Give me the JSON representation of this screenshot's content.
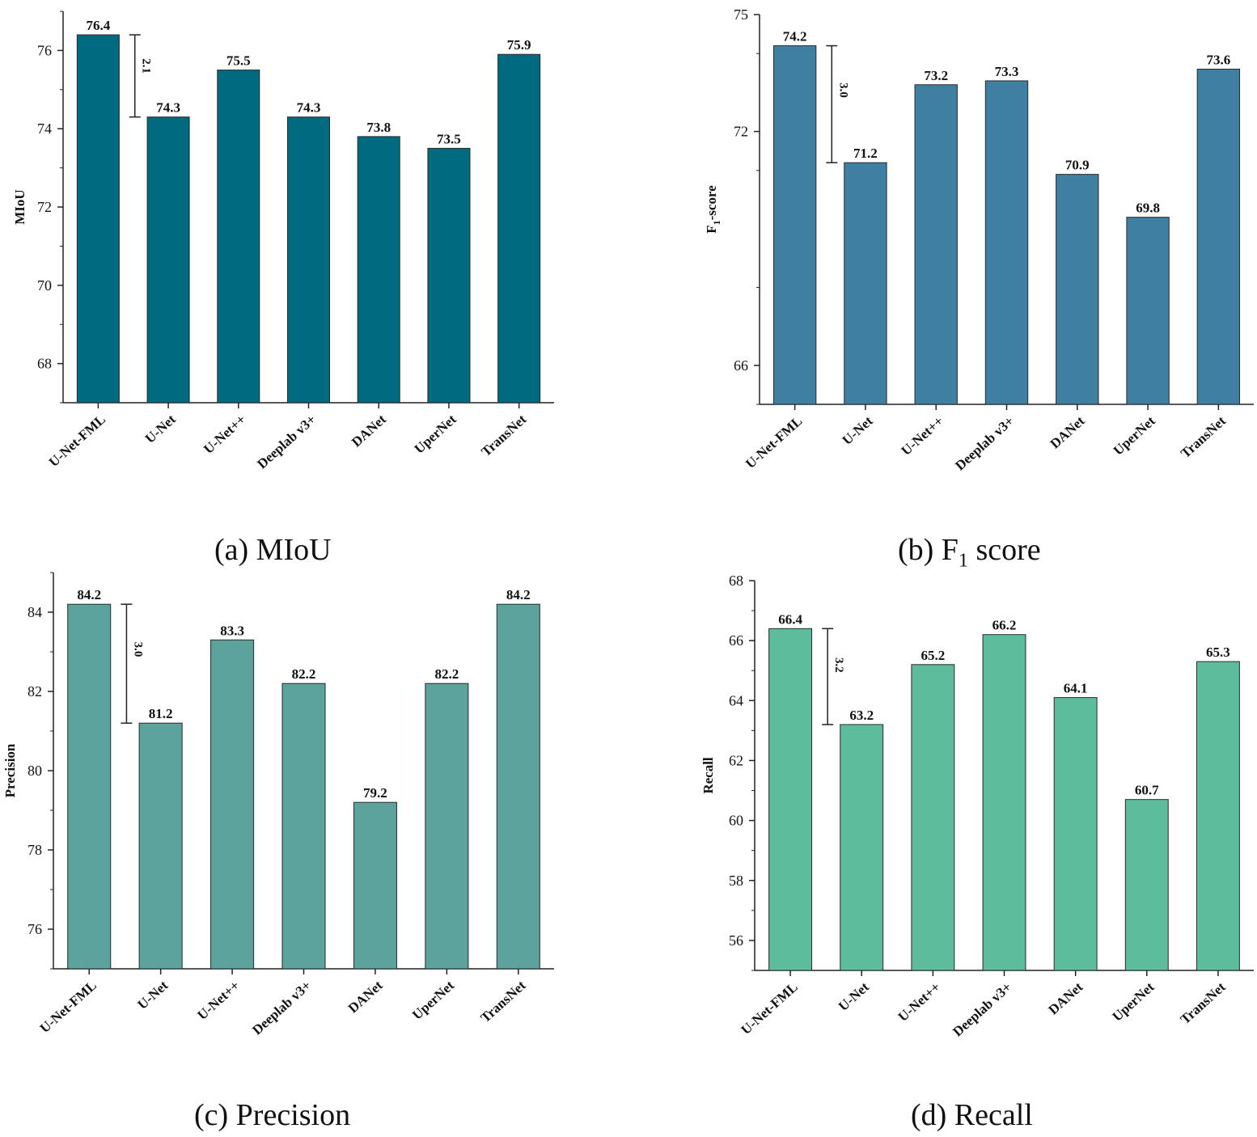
{
  "charts": [
    {
      "type": "bar",
      "panel": "a",
      "caption": "(a) MIoU",
      "ylabel": "MIoU",
      "categories": [
        "U-Net-FML",
        "U-Net",
        "U-Net++",
        "Deeplab v3+",
        "DANet",
        "UperNet",
        "TransNet"
      ],
      "values": [
        76.4,
        74.3,
        75.5,
        74.3,
        73.8,
        73.5,
        75.9
      ],
      "value_labels": [
        "76.4",
        "74.3",
        "75.5",
        "74.3",
        "73.8",
        "73.5",
        "75.9"
      ],
      "ylim": [
        67,
        77
      ],
      "yticks": [
        68,
        70,
        72,
        74,
        76
      ],
      "ytick_labels": [
        "68",
        "70",
        "72",
        "74",
        "76"
      ],
      "gap": {
        "from": 76.4,
        "to": 74.3,
        "label": "2.1"
      },
      "color": "#006a80"
    },
    {
      "type": "bar",
      "panel": "b",
      "caption_prefix": "(b) F",
      "caption_sub": "1",
      "caption_suffix": " score",
      "ylabel_prefix": "F",
      "ylabel_sub": "1",
      "ylabel_suffix": "-score",
      "categories": [
        "U-Net-FML",
        "U-Net",
        "U-Net++",
        "Deeplab v3+",
        "DANet",
        "UperNet",
        "TransNet"
      ],
      "values": [
        74.2,
        71.2,
        73.2,
        73.3,
        70.9,
        69.8,
        73.6
      ],
      "value_labels": [
        "74.2",
        "71.2",
        "73.2",
        "73.3",
        "70.9",
        "69.8",
        "73.6"
      ],
      "ylim": [
        65,
        75
      ],
      "yticks": [
        66,
        72,
        75
      ],
      "ytick_labels": [
        "66",
        "72",
        "75"
      ],
      "gap": {
        "from": 74.2,
        "to": 71.2,
        "label": "3.0"
      },
      "color": "#3f7fa2"
    },
    {
      "type": "bar",
      "panel": "c",
      "caption": "(c) Precision",
      "ylabel": "Precision",
      "categories": [
        "U-Net-FML",
        "U-Net",
        "U-Net++",
        "Deeplab v3+",
        "DANet",
        "UperNet",
        "TransNet"
      ],
      "values": [
        84.2,
        81.2,
        83.3,
        82.2,
        79.2,
        82.2,
        84.2
      ],
      "value_labels": [
        "84.2",
        "81.2",
        "83.3",
        "82.2",
        "79.2",
        "82.2",
        "84.2"
      ],
      "ylim": [
        75,
        85
      ],
      "yticks": [
        76,
        78,
        80,
        82,
        84
      ],
      "ytick_labels": [
        "76",
        "78",
        "80",
        "82",
        "84"
      ],
      "gap": {
        "from": 84.2,
        "to": 81.2,
        "label": "3.0"
      },
      "color": "#5ba39c"
    },
    {
      "type": "bar",
      "panel": "d",
      "caption": "(d) Recall",
      "ylabel": "Recall",
      "categories": [
        "U-Net-FML",
        "U-Net",
        "U-Net++",
        "Deeplab v3+",
        "DANet",
        "UperNet",
        "TransNet"
      ],
      "values": [
        66.4,
        63.2,
        65.2,
        66.2,
        64.1,
        60.7,
        65.3
      ],
      "value_labels": [
        "66.4",
        "63.2",
        "65.2",
        "66.2",
        "64.1",
        "60.7",
        "65.3"
      ],
      "ylim": [
        55,
        68
      ],
      "yticks": [
        56,
        58,
        60,
        62,
        64,
        66,
        68
      ],
      "ytick_labels": [
        "56",
        "58",
        "60",
        "62",
        "64",
        "66",
        "68"
      ],
      "gap": {
        "from": 66.4,
        "to": 63.2,
        "label": "3.2"
      },
      "color": "#5cbc9c"
    }
  ]
}
